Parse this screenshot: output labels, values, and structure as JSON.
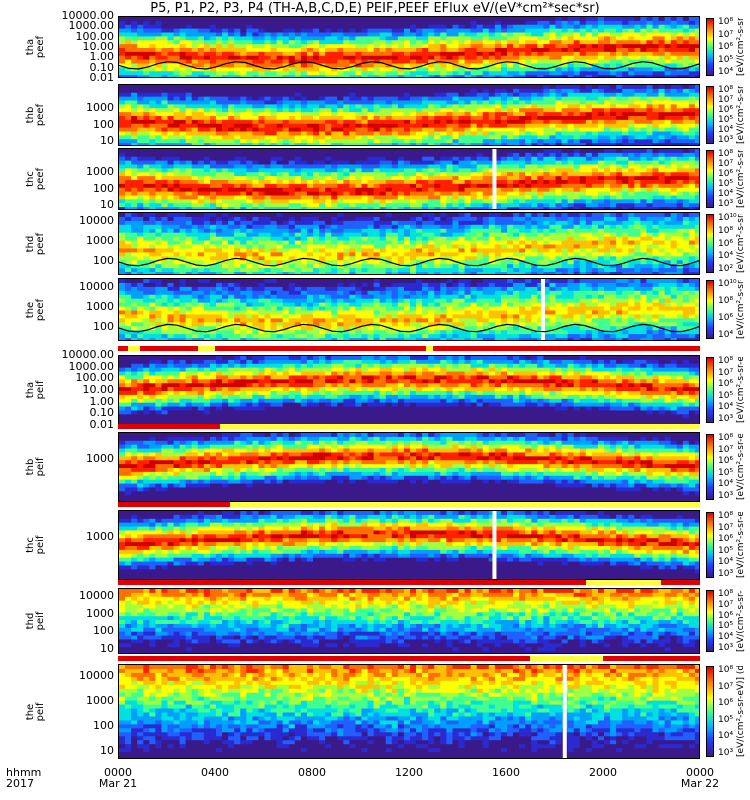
{
  "title": "P5, P1, P2, P3, P4 (TH-A,B,C,D,E) PEIF,PEEF EFlux eV/(eV*cm²*sec*sr)",
  "colorbar_unit": "[eV/(cm²-s-sr-eV)] (dI)",
  "footer": {
    "row1": "hhmm",
    "row2": "2017"
  },
  "colors": {
    "low": "#3a1a8a",
    "mid": "#40ff80",
    "high": "#e00000",
    "flag_bad": "#e00000",
    "flag_warn": "#ffff40",
    "gap": "#ffffff"
  },
  "chart_data": {
    "type": "heatmap",
    "x_axis": {
      "label": "hhmm",
      "ticks": [
        "0000",
        "0400",
        "0800",
        "1200",
        "1600",
        "2000",
        "0000"
      ],
      "date_labels": [
        "Mar 21",
        "Mar 22"
      ],
      "range_hours": [
        0,
        24
      ]
    },
    "panels": [
      {
        "name": "tha peef",
        "probe": "tha",
        "species": "peef",
        "ylabel": "tha\npeef",
        "yticks": [
          "10000.00",
          "1000.00",
          "100.00",
          "10.00",
          "1.00",
          "0.10",
          "0.01"
        ],
        "yrange": [
          0.01,
          10000
        ],
        "yscale": "log",
        "colorbar_ticks": [
          "10⁸",
          "10⁷",
          "10⁶",
          "10⁵",
          "10⁴"
        ],
        "gaps_hours": [],
        "overlay": true
      },
      {
        "name": "thb peef",
        "probe": "thb",
        "species": "peef",
        "ylabel": "thb\npeef",
        "yticks": [
          "1000",
          "100",
          "10"
        ],
        "yrange": [
          5,
          30000
        ],
        "yscale": "log",
        "colorbar_ticks": [
          "10⁸",
          "10⁷",
          "10⁶",
          "10⁵",
          "10⁴",
          "10³"
        ],
        "gaps_hours": [],
        "overlay": false
      },
      {
        "name": "thc peef",
        "probe": "thc",
        "species": "peef",
        "ylabel": "thc\npeef",
        "yticks": [
          "1000",
          "100",
          "10"
        ],
        "yrange": [
          5,
          30000
        ],
        "yscale": "log",
        "colorbar_ticks": [
          "10⁸",
          "10⁷",
          "10⁶",
          "10⁵",
          "10⁴",
          "10³"
        ],
        "gaps_hours": [
          15.4
        ],
        "overlay": false
      },
      {
        "name": "thd peef",
        "probe": "thd",
        "species": "peef",
        "ylabel": "thd\npeef",
        "yticks": [
          "10000",
          "1000",
          "100"
        ],
        "yrange": [
          20,
          30000
        ],
        "yscale": "log",
        "colorbar_ticks": [
          "10¹⁰",
          "10⁸",
          "10⁶",
          "10⁴",
          "10²"
        ],
        "gaps_hours": [],
        "overlay": true
      },
      {
        "name": "the peef",
        "probe": "the",
        "species": "peef",
        "ylabel": "the\npeef",
        "yticks": [
          "10000",
          "1000",
          "100"
        ],
        "yrange": [
          20,
          30000
        ],
        "yscale": "log",
        "colorbar_ticks": [
          "10¹⁰",
          "10⁸",
          "10⁶",
          "10⁴"
        ],
        "gaps_hours": [
          17.4
        ],
        "overlay": true
      },
      {
        "name": "tha peif",
        "probe": "tha",
        "species": "peif",
        "ylabel": "tha\npeif",
        "yticks": [
          "10000.00",
          "1000.00",
          "100.00",
          "10.00",
          "1.00",
          "0.10",
          "0.01"
        ],
        "yrange": [
          0.01,
          10000
        ],
        "yscale": "log",
        "colorbar_ticks": [
          "10⁸",
          "10⁷",
          "10⁶",
          "10⁵",
          "10⁴",
          "10³"
        ],
        "gaps_hours": [],
        "overlay": false
      },
      {
        "name": "thb peif",
        "probe": "thb",
        "species": "peif",
        "ylabel": "thb\npeif",
        "yticks": [
          "1000"
        ],
        "yrange": [
          5,
          30000
        ],
        "yscale": "log",
        "colorbar_ticks": [
          "10⁸",
          "10⁷",
          "10⁶",
          "10⁵",
          "10⁴",
          "10³"
        ],
        "gaps_hours": [],
        "overlay": false
      },
      {
        "name": "thc peif",
        "probe": "thc",
        "species": "peif",
        "ylabel": "thc\npeif",
        "yticks": [
          "1000"
        ],
        "yrange": [
          5,
          30000
        ],
        "yscale": "log",
        "colorbar_ticks": [
          "10⁸",
          "10⁷",
          "10⁶",
          "10⁵",
          "10⁴",
          "10³"
        ],
        "gaps_hours": [
          15.4
        ],
        "overlay": false
      },
      {
        "name": "thd peif",
        "probe": "thd",
        "species": "peif",
        "ylabel": "thd\npeif",
        "yticks": [
          "10000",
          "1000",
          "100",
          "10"
        ],
        "yrange": [
          5,
          30000
        ],
        "yscale": "log",
        "colorbar_ticks": [
          "10⁸",
          "10⁷",
          "10⁶",
          "10⁵",
          "10⁴",
          "10³"
        ],
        "gaps_hours": [],
        "overlay": false
      },
      {
        "name": "the peif",
        "probe": "the",
        "species": "peif",
        "ylabel": "the\npeif",
        "yticks": [
          "10000",
          "1000",
          "100",
          "10"
        ],
        "yrange": [
          5,
          30000
        ],
        "yscale": "log",
        "colorbar_ticks": [
          "10⁸",
          "10⁷",
          "10⁶",
          "10⁵",
          "10⁴",
          "10³"
        ],
        "gaps_hours": [
          18.3
        ],
        "overlay": false
      }
    ],
    "flag_bars": [
      {
        "after_panel": 4,
        "warn_hours": [
          [
            0.4,
            0.9
          ],
          [
            3.3,
            4.0
          ],
          [
            12.7,
            13.0
          ]
        ]
      },
      {
        "after_panel": 5,
        "warn_hours": [
          [
            4.2,
            24.0
          ]
        ]
      },
      {
        "after_panel": 6,
        "warn_hours": [
          [
            4.6,
            24.0
          ]
        ]
      },
      {
        "after_panel": 7,
        "warn_hours": [
          [
            19.3,
            22.4
          ]
        ]
      },
      {
        "after_panel": 8,
        "warn_hours": [
          [
            17.0,
            20.0
          ]
        ]
      }
    ]
  }
}
